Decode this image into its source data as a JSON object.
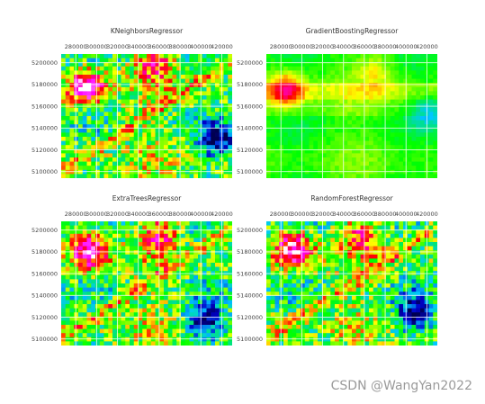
{
  "watermark": "CSDN @WangYan2022",
  "chart_data": [
    {
      "type": "heatmap",
      "title": "KNeighborsRegressor",
      "xticks": [
        280000,
        300000,
        320000,
        340000,
        360000,
        380000,
        400000,
        420000
      ],
      "yticks": [
        5100000,
        5120000,
        5140000,
        5160000,
        5180000,
        5200000
      ],
      "xlim": [
        266000,
        430000
      ],
      "ylim": [
        5094000,
        5208000
      ],
      "grid": true,
      "colormap": [
        "#ffffff",
        "#ff00ff",
        "#ff0000",
        "#ffff00",
        "#00ff00",
        "#00c8ff",
        "#0000cc",
        "#000050"
      ],
      "hotspots": [
        {
          "x": 290000,
          "y": 5178000,
          "level": 0.05
        },
        {
          "x": 356000,
          "y": 5196000,
          "level": 0.25
        },
        {
          "x": 415000,
          "y": 5130000,
          "level": 0.95
        }
      ]
    },
    {
      "type": "heatmap",
      "title": "GradientBoostingRegressor",
      "xticks": [
        280000,
        300000,
        320000,
        340000,
        360000,
        380000,
        400000,
        420000
      ],
      "yticks": [
        5100000,
        5120000,
        5140000,
        5160000,
        5180000,
        5200000
      ],
      "xlim": [
        266000,
        430000
      ],
      "ylim": [
        5094000,
        5208000
      ],
      "grid": true,
      "colormap": [
        "#ffffff",
        "#ff00ff",
        "#ff0000",
        "#ffff00",
        "#00ff00",
        "#00c8ff",
        "#0000cc",
        "#000050"
      ],
      "hotspots": [
        {
          "x": 285000,
          "y": 5175000,
          "level": 0.1
        },
        {
          "x": 370000,
          "y": 5190000,
          "level": 0.35
        },
        {
          "x": 422000,
          "y": 5155000,
          "level": 0.85
        }
      ]
    },
    {
      "type": "heatmap",
      "title": "ExtraTreesRegressor",
      "xticks": [
        280000,
        300000,
        320000,
        340000,
        360000,
        380000,
        400000,
        420000
      ],
      "yticks": [
        5100000,
        5120000,
        5140000,
        5160000,
        5180000,
        5200000
      ],
      "xlim": [
        266000,
        430000
      ],
      "ylim": [
        5094000,
        5208000
      ],
      "grid": true,
      "colormap": [
        "#ffffff",
        "#ff00ff",
        "#ff0000",
        "#ffff00",
        "#00ff00",
        "#00c8ff",
        "#0000cc",
        "#000050"
      ],
      "hotspots": [
        {
          "x": 293000,
          "y": 5180000,
          "level": 0.05
        },
        {
          "x": 360000,
          "y": 5195000,
          "level": 0.25
        },
        {
          "x": 405000,
          "y": 5118000,
          "level": 0.95
        }
      ]
    },
    {
      "type": "heatmap",
      "title": "RandomForestRegressor",
      "xticks": [
        280000,
        300000,
        320000,
        340000,
        360000,
        380000,
        400000,
        420000
      ],
      "yticks": [
        5100000,
        5120000,
        5140000,
        5160000,
        5180000,
        5200000
      ],
      "xlim": [
        266000,
        430000
      ],
      "ylim": [
        5094000,
        5208000
      ],
      "grid": true,
      "colormap": [
        "#ffffff",
        "#ff00ff",
        "#ff0000",
        "#ffff00",
        "#00ff00",
        "#00c8ff",
        "#0000cc",
        "#000050"
      ],
      "hotspots": [
        {
          "x": 292000,
          "y": 5182000,
          "level": 0.05
        },
        {
          "x": 358000,
          "y": 5194000,
          "level": 0.25
        },
        {
          "x": 408000,
          "y": 5125000,
          "level": 0.95
        }
      ]
    }
  ]
}
